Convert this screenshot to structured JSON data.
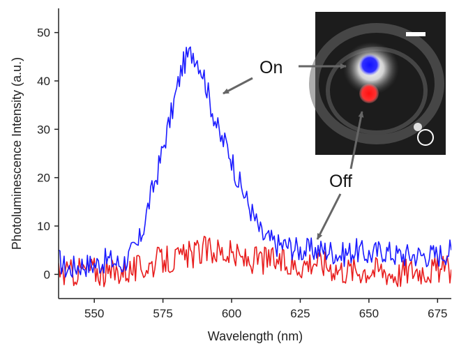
{
  "chart_data": {
    "type": "line",
    "xlabel": "Wavelength (nm)",
    "ylabel": "Photoluminescence Intensity (a.u.)",
    "xlim": [
      537,
      680
    ],
    "ylim": [
      -5,
      55
    ],
    "x_ticks": [
      550,
      575,
      600,
      625,
      650,
      675
    ],
    "y_ticks": [
      0,
      10,
      20,
      30,
      40,
      50
    ],
    "grid": false,
    "annotations": [
      {
        "id": "on",
        "text": "On",
        "series_color": "#1a1aff"
      },
      {
        "id": "off",
        "text": "Off",
        "series_color": "#e81c1c"
      }
    ],
    "series": [
      {
        "color": "#1a1aff",
        "x": [
          537,
          540,
          545,
          550,
          555,
          560,
          563,
          566,
          568,
          570,
          573,
          575,
          578,
          580,
          582,
          584,
          586,
          588,
          590,
          592,
          594,
          596,
          598,
          600,
          602,
          605,
          608,
          611,
          614,
          617,
          620,
          625,
          630,
          635,
          640,
          645,
          650,
          655,
          660,
          665,
          670,
          675,
          680
        ],
        "y": [
          3,
          1,
          2,
          2,
          3,
          2,
          4,
          6,
          10,
          15,
          21,
          26,
          33,
          38,
          43,
          45,
          46,
          44,
          41,
          36,
          32,
          28,
          27,
          24,
          20,
          16,
          12,
          8,
          7,
          6,
          6,
          5,
          5,
          5,
          4,
          5,
          4,
          5,
          4,
          4,
          4,
          4,
          5
        ]
      },
      {
        "color": "#e81c1c",
        "x": [
          537,
          540,
          545,
          550,
          555,
          560,
          565,
          570,
          575,
          580,
          585,
          590,
          595,
          600,
          605,
          610,
          615,
          620,
          625,
          630,
          635,
          640,
          645,
          650,
          655,
          660,
          665,
          670,
          675,
          680
        ],
        "y": [
          1,
          0,
          1,
          1,
          0,
          1,
          1,
          2,
          3,
          3,
          4,
          5,
          5,
          4,
          3,
          3,
          3,
          2,
          2,
          3,
          2,
          1,
          1,
          1,
          1,
          0,
          1,
          1,
          1,
          1
        ]
      }
    ]
  },
  "inset": {
    "caption": "microscope image inset",
    "markers": [
      {
        "color": "#2020ff"
      },
      {
        "color": "#ff2020"
      }
    ]
  }
}
